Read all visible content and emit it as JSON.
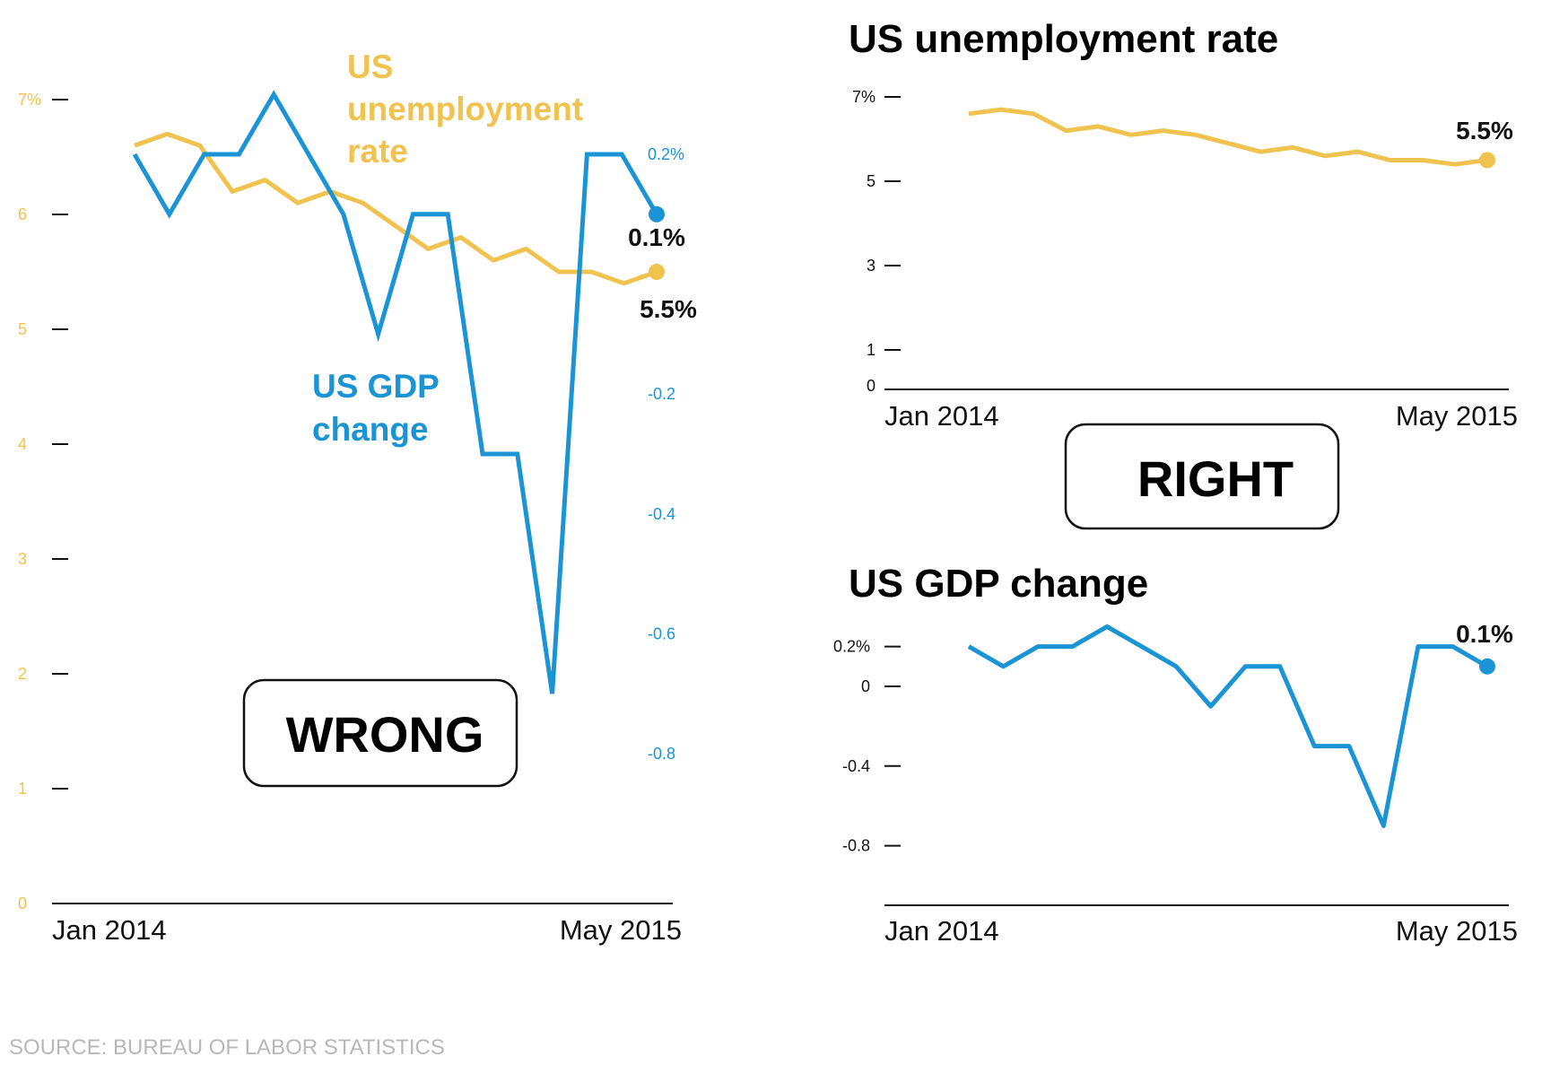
{
  "colors": {
    "unemployment": "#F0C24F",
    "gdp": "#1A94D4",
    "axis": "#111111"
  },
  "labels": {
    "wrong": "WRONG",
    "right": "RIGHT",
    "source": "SOURCE: BUREAU OF LABOR STATISTICS",
    "unemp_series": [
      "US",
      "unemployment",
      "rate"
    ],
    "gdp_series": [
      "US GDP",
      "change"
    ],
    "unemp_end": "5.5%",
    "gdp_end": "0.1%"
  },
  "chart_data": [
    {
      "type": "line",
      "title": "",
      "x_range": [
        "Jan 2014",
        "May 2015"
      ],
      "x_tick_labels": [
        "Jan 2014",
        "May 2015"
      ],
      "y_left_ticks": [
        "7%",
        "6",
        "5",
        "4",
        "3",
        "2",
        "1",
        "0"
      ],
      "y_left_lim": [
        0,
        7
      ],
      "y_right_ticks": [
        "0.2%",
        "-0.2",
        "-0.4",
        "-0.6",
        "-0.8"
      ],
      "y_right_lim": [
        -1.1,
        0.3
      ],
      "series": [
        {
          "name": "US unemployment rate",
          "axis": "left",
          "values": [
            6.6,
            6.7,
            6.6,
            6.2,
            6.3,
            6.1,
            6.2,
            6.1,
            5.9,
            5.7,
            5.8,
            5.6,
            5.7,
            5.5,
            5.5,
            5.4,
            5.5
          ]
        },
        {
          "name": "US GDP change",
          "axis": "right",
          "values": [
            0.2,
            0.1,
            0.2,
            0.2,
            0.3,
            0.2,
            0.1,
            -0.1,
            0.1,
            0.1,
            -0.3,
            -0.3,
            -0.7,
            0.2,
            0.2,
            0.1
          ]
        }
      ]
    },
    {
      "type": "line",
      "title": "US unemployment rate",
      "x_range": [
        "Jan 2014",
        "May 2015"
      ],
      "x_tick_labels": [
        "Jan 2014",
        "May 2015"
      ],
      "y_ticks": [
        "7%",
        "5",
        "3",
        "1",
        "0"
      ],
      "ylim": [
        0,
        7
      ],
      "series": [
        {
          "values": [
            6.6,
            6.7,
            6.6,
            6.2,
            6.3,
            6.1,
            6.2,
            6.1,
            5.9,
            5.7,
            5.8,
            5.6,
            5.7,
            5.5,
            5.5,
            5.4,
            5.5
          ]
        }
      ]
    },
    {
      "type": "line",
      "title": "US GDP change",
      "x_range": [
        "Jan 2014",
        "May 2015"
      ],
      "x_tick_labels": [
        "Jan 2014",
        "May 2015"
      ],
      "y_ticks": [
        "0.2%",
        "0",
        "-0.4",
        "-0.8"
      ],
      "ylim": [
        -1.0,
        0.3
      ],
      "series": [
        {
          "values": [
            0.2,
            0.1,
            0.2,
            0.2,
            0.3,
            0.2,
            0.1,
            -0.1,
            0.1,
            0.1,
            -0.3,
            -0.3,
            -0.7,
            0.2,
            0.2,
            0.1
          ]
        }
      ]
    }
  ]
}
